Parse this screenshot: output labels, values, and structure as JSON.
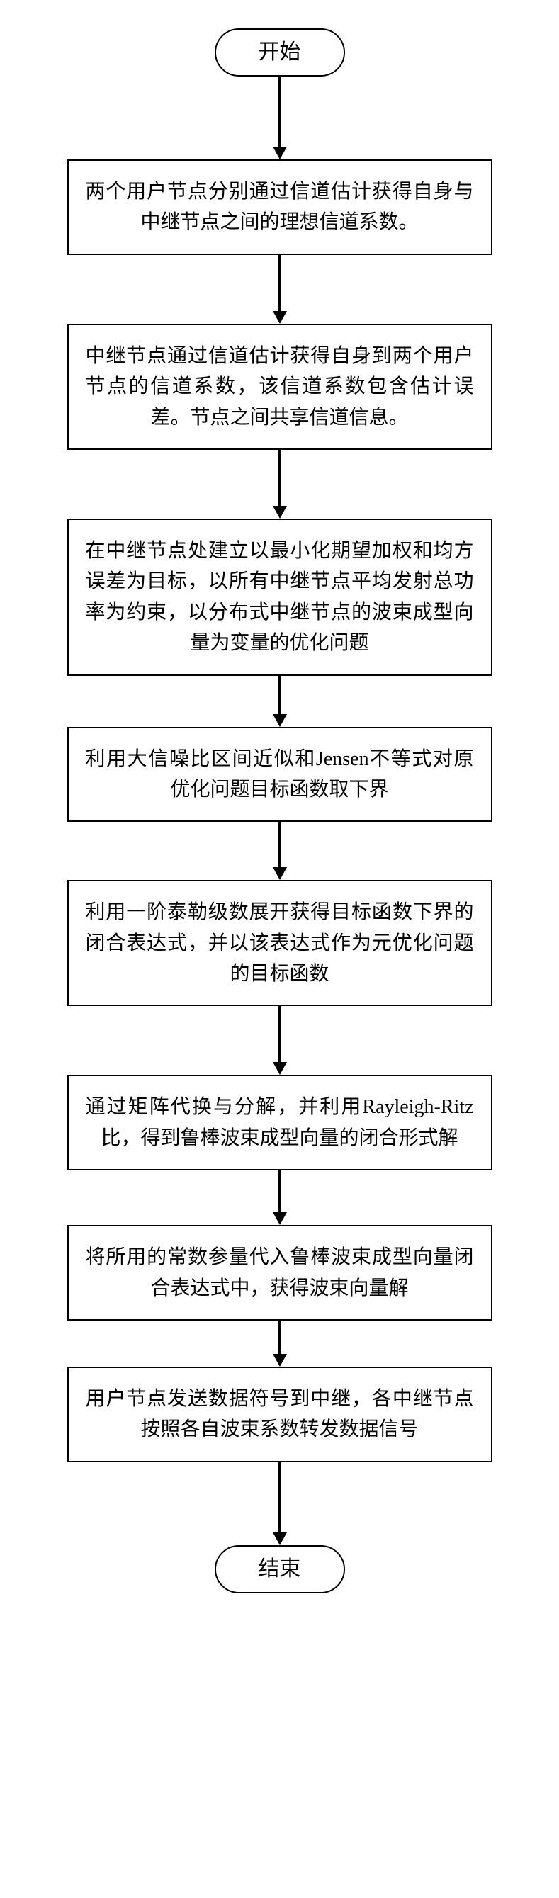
{
  "flowchart": {
    "type": "flowchart",
    "direction": "top-to-bottom",
    "background_color": "#ffffff",
    "border_color": "#000000",
    "border_width": 2.5,
    "font_family": "SimSun",
    "terminator_fontsize": 30,
    "process_fontsize": 28,
    "process_width": 600,
    "line_height": 1.55,
    "arrow_line_width": 2.5,
    "arrow_head_width": 20,
    "arrow_head_height": 18,
    "nodes": [
      {
        "id": "start",
        "shape": "terminator",
        "label": "开始"
      },
      {
        "id": "n1",
        "shape": "process",
        "label": "两个用户节点分别通过信道估计获得自身与中继节点之间的理想信道系数。"
      },
      {
        "id": "n2",
        "shape": "process",
        "label": "中继节点通过信道估计获得自身到两个用户节点的信道系数，该信道系数包含估计误差。节点之间共享信道信息。"
      },
      {
        "id": "n3",
        "shape": "process",
        "label": "在中继节点处建立以最小化期望加权和均方误差为目标，以所有中继节点平均发射总功率为约束，以分布式中继节点的波束成型向量为变量的优化问题"
      },
      {
        "id": "n4",
        "shape": "process",
        "label": "利用大信噪比区间近似和Jensen不等式对原优化问题目标函数取下界"
      },
      {
        "id": "n5",
        "shape": "process",
        "label": "利用一阶泰勒级数展开获得目标函数下界的闭合表达式，并以该表达式作为元优化问题的目标函数"
      },
      {
        "id": "n6",
        "shape": "process",
        "label": "通过矩阵代换与分解，并利用Rayleigh-Ritz比，得到鲁棒波束成型向量的闭合形式解"
      },
      {
        "id": "n7",
        "shape": "process",
        "label": "将所用的常数参量代入鲁棒波束成型向量闭合表达式中，获得波束向量解"
      },
      {
        "id": "n8",
        "shape": "process",
        "label": "用户节点发送数据符号到中继，各中继节点按照各自波束系数转发数据信号"
      },
      {
        "id": "end",
        "shape": "terminator",
        "label": "结束"
      }
    ],
    "edges": [
      {
        "from": "start",
        "to": "n1",
        "gap": 100
      },
      {
        "from": "n1",
        "to": "n2",
        "gap": 80
      },
      {
        "from": "n2",
        "to": "n3",
        "gap": 80
      },
      {
        "from": "n3",
        "to": "n4",
        "gap": 55
      },
      {
        "from": "n4",
        "to": "n5",
        "gap": 65
      },
      {
        "from": "n5",
        "to": "n6",
        "gap": 80
      },
      {
        "from": "n6",
        "to": "n7",
        "gap": 60
      },
      {
        "from": "n7",
        "to": "n8",
        "gap": 48
      },
      {
        "from": "n8",
        "to": "end",
        "gap": 100
      }
    ]
  }
}
